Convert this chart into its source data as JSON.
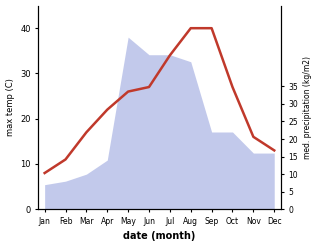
{
  "months": [
    "Jan",
    "Feb",
    "Mar",
    "Apr",
    "May",
    "Jun",
    "Jul",
    "Aug",
    "Sep",
    "Oct",
    "Nov",
    "Dec"
  ],
  "temp": [
    8,
    11,
    17,
    22,
    26,
    27,
    34,
    40,
    40,
    27,
    16,
    13
  ],
  "precip": [
    7,
    8,
    10,
    14,
    49,
    44,
    44,
    42,
    22,
    22,
    16,
    16
  ],
  "temp_color": "#c0392b",
  "precip_fill_color": "#b8c0e8",
  "temp_ylim": [
    0,
    45
  ],
  "precip_ylim": [
    0,
    58
  ],
  "temp_yticks": [
    0,
    10,
    20,
    30,
    40
  ],
  "precip_yticks_vals": [
    0,
    5,
    10,
    15,
    20,
    25,
    30,
    35
  ],
  "precip_yticks_pos": [
    0,
    7.2,
    14.4,
    21.6,
    28.8,
    36.0,
    43.2,
    50.4
  ],
  "xlabel": "date (month)",
  "ylabel_left": "max temp (C)",
  "ylabel_right": "med. precipitation (kg/m2)"
}
